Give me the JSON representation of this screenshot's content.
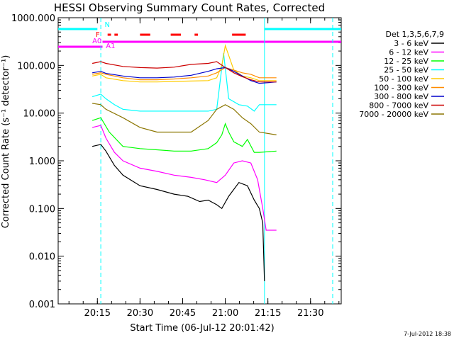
{
  "chart_data": {
    "type": "line",
    "title": "HESSI Observing Summary Count Rates, Corrected",
    "xlabel": "Start Time (06-Jul-12 20:01:42)",
    "ylabel": "Corrected Count Rate (s⁻¹ detector⁻¹)",
    "yscale": "log",
    "ylim": [
      0.001,
      1000
    ],
    "xlim": [
      20.02,
      21.68
    ],
    "x_ticks": [
      {
        "t": 20.25,
        "label": "20:15"
      },
      {
        "t": 20.5,
        "label": "20:30"
      },
      {
        "t": 20.75,
        "label": "20:45"
      },
      {
        "t": 21.0,
        "label": "21:00"
      },
      {
        "t": 21.25,
        "label": "21:15"
      },
      {
        "t": 21.5,
        "label": "21:30"
      }
    ],
    "y_ticks": [
      {
        "v": 1000,
        "label": "1000.000"
      },
      {
        "v": 100,
        "label": "100.000"
      },
      {
        "v": 10,
        "label": "10.000"
      },
      {
        "v": 1,
        "label": "1.000"
      },
      {
        "v": 0.1,
        "label": "0.100"
      },
      {
        "v": 0.01,
        "label": "0.010"
      },
      {
        "v": 0.001,
        "label": "0.001"
      }
    ],
    "legend_title": "Det 1,3,5,6,7,9",
    "legend_position": "right",
    "series": [
      {
        "name": "3 - 6 keV",
        "color": "#000000",
        "x": [
          20.22,
          20.27,
          20.3,
          20.35,
          20.4,
          20.5,
          20.6,
          20.7,
          20.78,
          20.85,
          20.9,
          20.95,
          20.98,
          21.02,
          21.08,
          21.13,
          21.17,
          21.2,
          21.22,
          21.23
        ],
        "y": [
          2,
          2.2,
          1.6,
          0.8,
          0.5,
          0.3,
          0.25,
          0.2,
          0.18,
          0.14,
          0.15,
          0.12,
          0.1,
          0.18,
          0.35,
          0.3,
          0.15,
          0.1,
          0.05,
          0.003
        ]
      },
      {
        "name": "6 - 12 keV",
        "color": "#ff00ff",
        "x": [
          20.22,
          20.27,
          20.3,
          20.35,
          20.4,
          20.5,
          20.6,
          20.7,
          20.8,
          20.88,
          20.95,
          21.0,
          21.05,
          21.1,
          21.15,
          21.19,
          21.22,
          21.24,
          21.3
        ],
        "y": [
          5,
          5.5,
          3,
          1.5,
          1,
          0.7,
          0.6,
          0.5,
          0.45,
          0.4,
          0.35,
          0.5,
          0.9,
          1.0,
          0.9,
          0.4,
          0.1,
          0.035,
          0.035
        ]
      },
      {
        "name": "12 - 25 keV",
        "color": "#00ff00",
        "x": [
          20.22,
          20.27,
          20.32,
          20.4,
          20.5,
          20.6,
          20.7,
          20.8,
          20.9,
          20.95,
          20.98,
          21.0,
          21.02,
          21.05,
          21.1,
          21.13,
          21.17,
          21.2,
          21.3
        ],
        "y": [
          7,
          8,
          4,
          2,
          1.8,
          1.7,
          1.6,
          1.6,
          1.8,
          2.4,
          3.5,
          6,
          4,
          2.5,
          2,
          2.8,
          1.5,
          1.5,
          1.6
        ]
      },
      {
        "name": "25 - 50 keV",
        "color": "#00ffff",
        "x": [
          20.22,
          20.27,
          20.3,
          20.35,
          20.4,
          20.5,
          20.6,
          20.7,
          20.8,
          20.9,
          20.95,
          20.99,
          21.02,
          21.08,
          21.13,
          21.17,
          21.2,
          21.3
        ],
        "y": [
          22,
          25,
          20,
          15,
          12,
          11,
          11,
          11,
          11,
          11,
          12,
          180,
          20,
          15,
          14,
          11,
          15,
          15
        ]
      },
      {
        "name": "50 - 100 keV",
        "color": "#ffcc00",
        "x": [
          20.22,
          20.27,
          20.3,
          20.4,
          20.5,
          20.6,
          20.7,
          20.8,
          20.9,
          20.95,
          20.98,
          21.0,
          21.05,
          21.1,
          21.15,
          21.2,
          21.3
        ],
        "y": [
          60,
          65,
          55,
          48,
          45,
          45,
          46,
          47,
          48,
          55,
          100,
          260,
          80,
          60,
          55,
          48,
          48
        ]
      },
      {
        "name": "100 - 300 keV",
        "color": "#ff8c00",
        "x": [
          20.22,
          20.27,
          20.3,
          20.4,
          20.5,
          20.6,
          20.7,
          20.8,
          20.9,
          20.95,
          21.0,
          21.05,
          21.1,
          21.15,
          21.2,
          21.3
        ],
        "y": [
          65,
          70,
          65,
          55,
          50,
          50,
          52,
          55,
          60,
          70,
          90,
          80,
          70,
          65,
          55,
          55
        ]
      },
      {
        "name": "300 - 800 keV",
        "color": "#0000cc",
        "x": [
          20.22,
          20.27,
          20.3,
          20.4,
          20.5,
          20.6,
          20.7,
          20.8,
          20.9,
          20.95,
          21.0,
          21.05,
          21.1,
          21.15,
          21.2,
          21.3
        ],
        "y": [
          70,
          75,
          68,
          60,
          55,
          55,
          57,
          62,
          75,
          85,
          90,
          75,
          60,
          48,
          42,
          45
        ]
      },
      {
        "name": "800 - 7000 keV",
        "color": "#cc0000",
        "x": [
          20.22,
          20.27,
          20.3,
          20.4,
          20.5,
          20.6,
          20.7,
          20.8,
          20.9,
          20.95,
          21.0,
          21.05,
          21.1,
          21.15,
          21.2,
          21.3
        ],
        "y": [
          110,
          120,
          110,
          95,
          90,
          88,
          92,
          105,
          110,
          120,
          90,
          70,
          58,
          50,
          45,
          45
        ]
      },
      {
        "name": "7000 - 20000 keV",
        "color": "#8b7500",
        "x": [
          20.22,
          20.27,
          20.3,
          20.4,
          20.5,
          20.6,
          20.7,
          20.8,
          20.9,
          20.95,
          21.0,
          21.05,
          21.1,
          21.15,
          21.2,
          21.3
        ],
        "y": [
          16,
          15,
          12,
          8,
          5,
          4,
          4,
          4,
          7,
          12,
          15,
          12,
          8,
          6,
          4,
          3.5
        ]
      }
    ],
    "annotations": [
      {
        "text": "N",
        "color": "#00ffff"
      },
      {
        "text": "F",
        "color": "#ff0000"
      },
      {
        "text": "A0",
        "color": "#ff00ff"
      },
      {
        "text": "A1",
        "color": "#ff00ff"
      }
    ],
    "flag_bars": {
      "night_color": "#00ffff",
      "flare_color": "#ff0000",
      "attenuator_color": "#ff00ff",
      "night_intervals": [
        [
          20.0,
          20.25
        ],
        [
          21.23,
          21.68
        ]
      ],
      "flare_intervals": [
        [
          20.31,
          20.33
        ],
        [
          20.35,
          20.37
        ],
        [
          20.5,
          20.56
        ],
        [
          20.68,
          20.74
        ],
        [
          20.82,
          20.84
        ],
        [
          21.04,
          21.12
        ]
      ],
      "attenuator_intervals": [
        [
          20.0,
          20.28
        ],
        [
          20.28,
          21.68
        ]
      ],
      "boundary_lines": [
        20.27,
        21.23,
        21.63
      ]
    },
    "footer": "7-Jul-2012 18:38"
  }
}
